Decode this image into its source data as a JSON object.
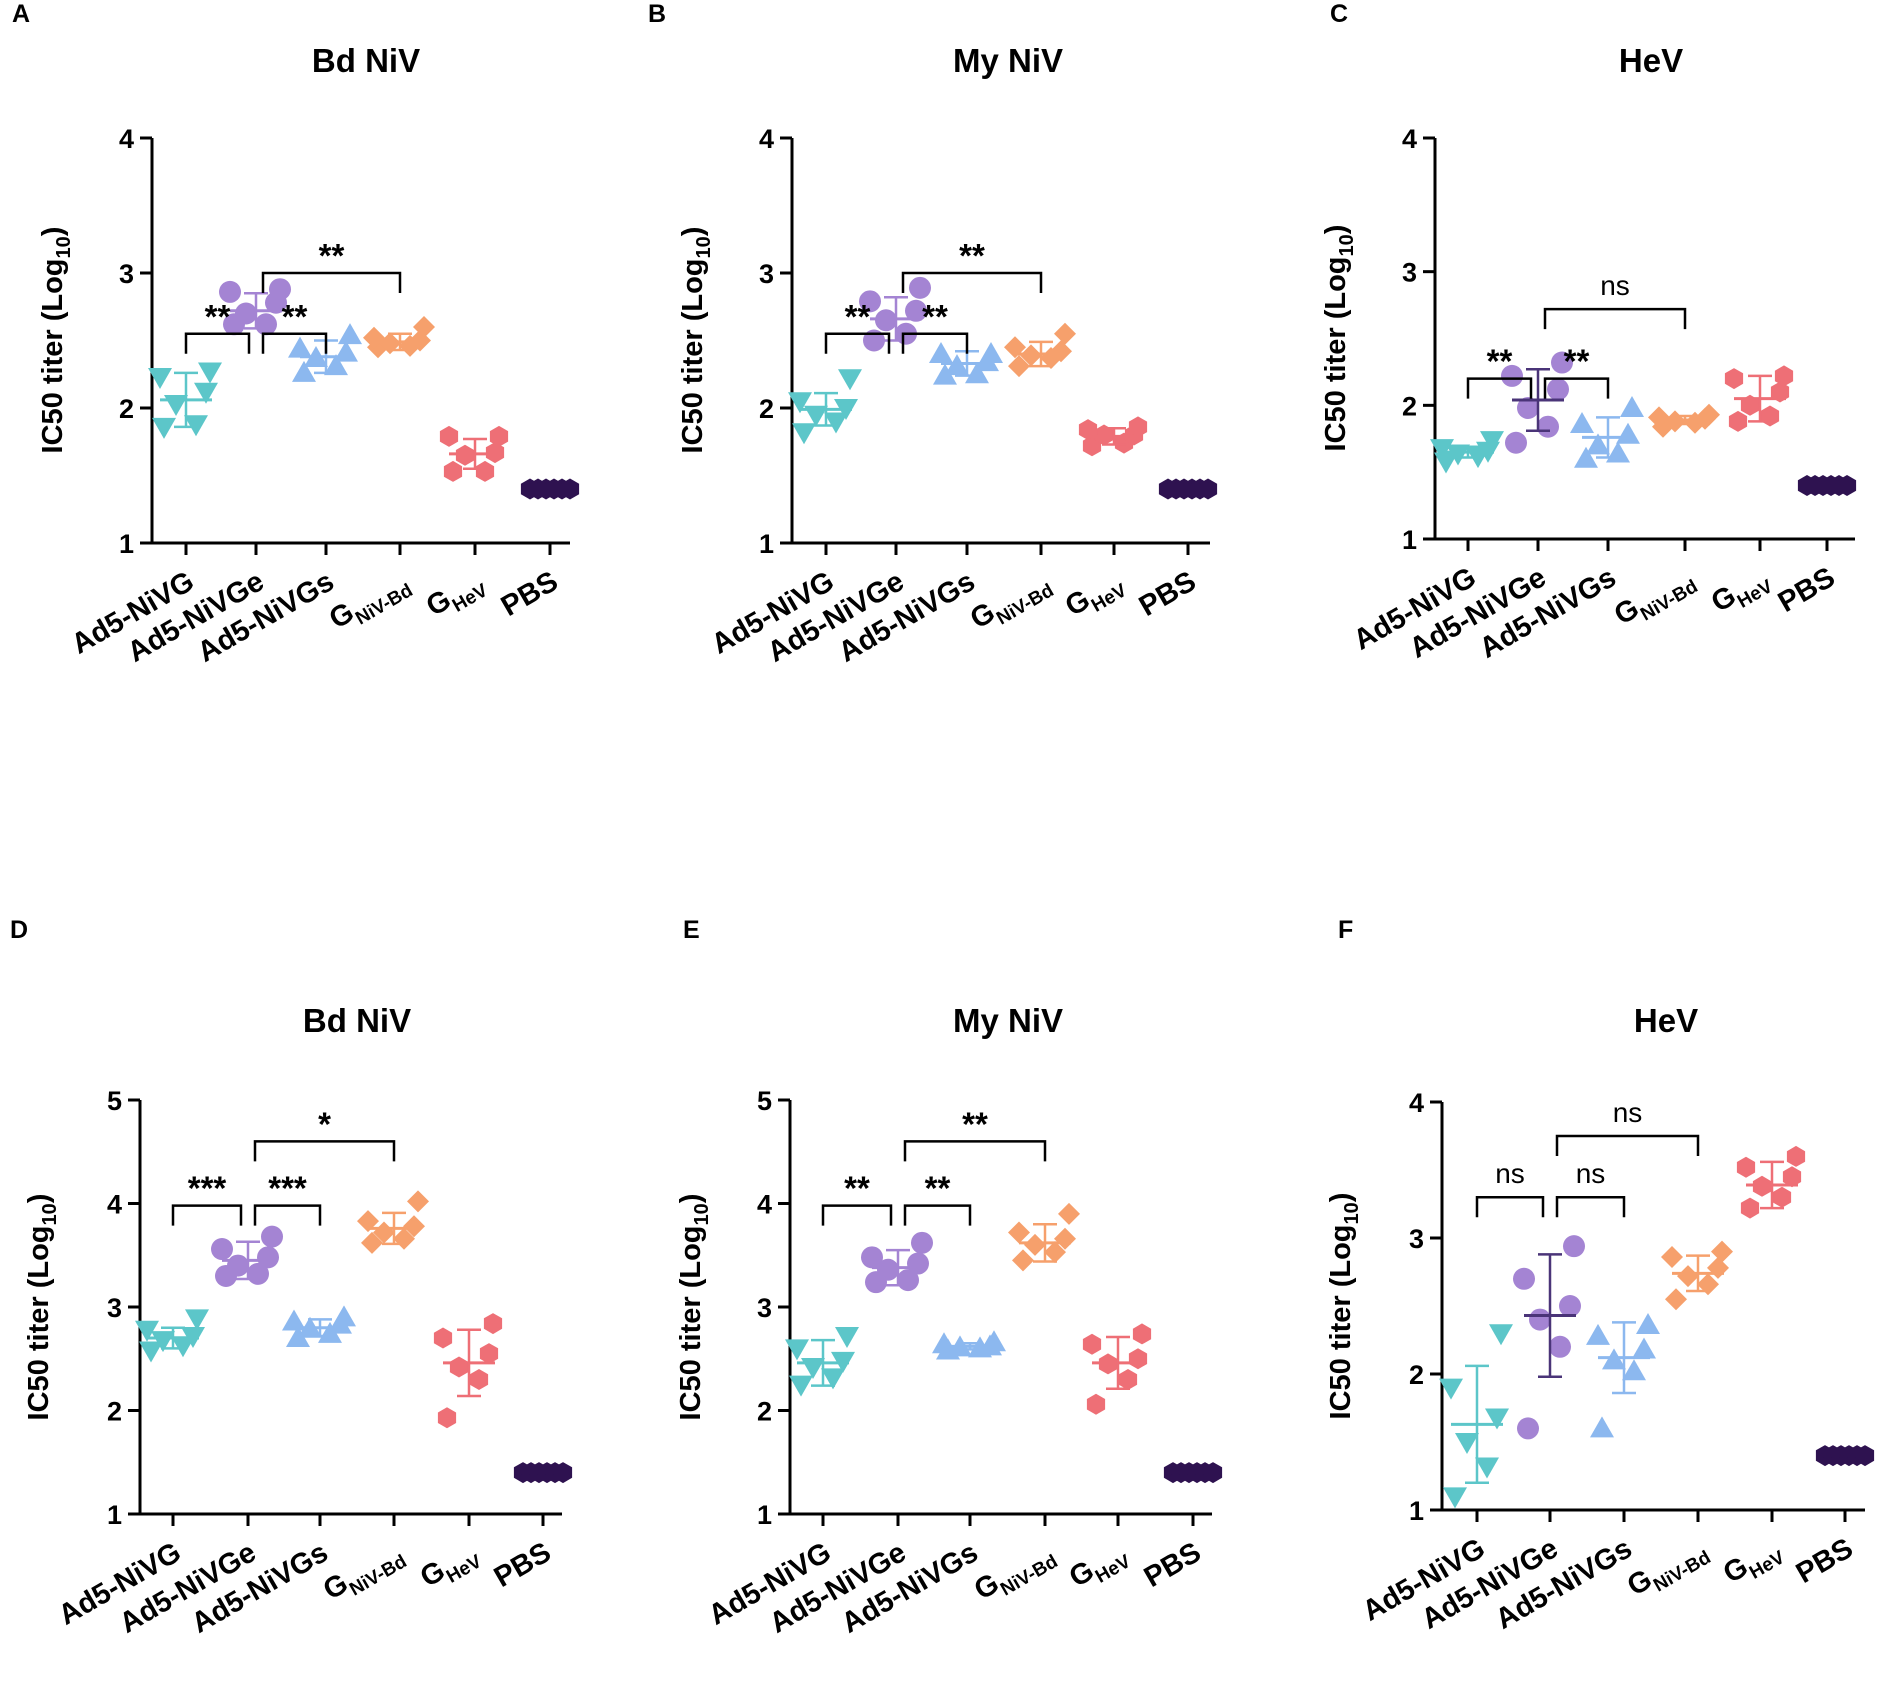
{
  "colors": {
    "Ad5-NiVG": "#5cc6c9",
    "Ad5-NiVGe": "#a484d3",
    "Ad5-NiVGs": "#8cb8ef",
    "GNiV-Bd": "#f6a06c",
    "GHeV": "#ee6f76",
    "PBS": "#2e1250"
  },
  "chart_data": [
    {
      "panel": "A",
      "title": "Bd NiV",
      "type": "scatter",
      "ylabel": "IC50 titer (Log",
      "ylabel_sub": "10",
      "ylabel_end": ")",
      "ylim": [
        1,
        4
      ],
      "yticks": [
        "1",
        "2",
        "3",
        "4"
      ],
      "categories": [
        {
          "main": "Ad5-NiVG",
          "sub": ""
        },
        {
          "main": "Ad5-NiVGe",
          "sub": ""
        },
        {
          "main": "Ad5-NiVGs",
          "sub": ""
        },
        {
          "main": "G",
          "sub": "NiV-Bd"
        },
        {
          "main": "G",
          "sub": "HeV"
        },
        {
          "main": "PBS",
          "sub": ""
        }
      ],
      "series": [
        {
          "name": "Ad5-NiVG",
          "marker": "triangle-down",
          "mean": 2.06,
          "sd": 0.2,
          "values": [
            1.86,
            1.88,
            2.03,
            2.12,
            2.23,
            2.27
          ]
        },
        {
          "name": "Ad5-NiVGe",
          "marker": "circle",
          "mean": 2.72,
          "sd": 0.13,
          "values": [
            2.62,
            2.62,
            2.7,
            2.78,
            2.86,
            2.88
          ]
        },
        {
          "name": "Ad5-NiVGs",
          "marker": "triangle-up",
          "mean": 2.38,
          "sd": 0.12,
          "values": [
            2.26,
            2.31,
            2.37,
            2.41,
            2.44,
            2.54
          ]
        },
        {
          "name": "GNiV-Bd",
          "marker": "diamond",
          "mean": 2.49,
          "sd": 0.06,
          "values": [
            2.45,
            2.46,
            2.48,
            2.5,
            2.52,
            2.6
          ]
        },
        {
          "name": "GHeV",
          "marker": "hexagon",
          "mean": 1.66,
          "sd": 0.11,
          "values": [
            1.53,
            1.53,
            1.65,
            1.67,
            1.79,
            1.79
          ]
        },
        {
          "name": "PBS",
          "marker": "hexagon",
          "mean": 1.4,
          "sd": 0,
          "values": [
            1.4,
            1.4,
            1.4,
            1.4,
            1.4,
            1.4
          ]
        }
      ],
      "comparisons": [
        {
          "from": 0,
          "to": 1,
          "label": "**",
          "y": 2.55
        },
        {
          "from": 1,
          "to": 2,
          "label": "**",
          "y": 2.55
        },
        {
          "from": 1,
          "to": 3,
          "label": "**",
          "y": 3.0
        }
      ]
    },
    {
      "panel": "B",
      "title": "My NiV",
      "type": "scatter",
      "ylabel": "IC50 titer (Log",
      "ylabel_sub": "10",
      "ylabel_end": ")",
      "ylim": [
        1,
        4
      ],
      "yticks": [
        "1",
        "2",
        "3",
        "4"
      ],
      "categories": [
        {
          "main": "Ad5-NiVG",
          "sub": ""
        },
        {
          "main": "Ad5-NiVGe",
          "sub": ""
        },
        {
          "main": "Ad5-NiVGs",
          "sub": ""
        },
        {
          "main": "G",
          "sub": "NiV-Bd"
        },
        {
          "main": "G",
          "sub": "HeV"
        },
        {
          "main": "PBS",
          "sub": ""
        }
      ],
      "series": [
        {
          "name": "Ad5-NiVG",
          "marker": "triangle-down",
          "mean": 1.99,
          "sd": 0.12,
          "values": [
            1.82,
            1.9,
            1.95,
            2.0,
            2.05,
            2.22
          ]
        },
        {
          "name": "Ad5-NiVGe",
          "marker": "circle",
          "mean": 2.66,
          "sd": 0.16,
          "values": [
            2.5,
            2.55,
            2.65,
            2.72,
            2.79,
            2.89
          ]
        },
        {
          "name": "Ad5-NiVGs",
          "marker": "triangle-up",
          "mean": 2.33,
          "sd": 0.09,
          "values": [
            2.24,
            2.25,
            2.31,
            2.34,
            2.4,
            2.4
          ]
        },
        {
          "name": "GNiV-Bd",
          "marker": "diamond",
          "mean": 2.4,
          "sd": 0.09,
          "values": [
            2.31,
            2.37,
            2.39,
            2.42,
            2.45,
            2.55
          ]
        },
        {
          "name": "GHeV",
          "marker": "hexagon",
          "mean": 1.79,
          "sd": 0.06,
          "values": [
            1.72,
            1.74,
            1.8,
            1.8,
            1.84,
            1.86
          ]
        },
        {
          "name": "PBS",
          "marker": "hexagon",
          "mean": 1.4,
          "sd": 0,
          "values": [
            1.4,
            1.4,
            1.4,
            1.4,
            1.4,
            1.4
          ]
        }
      ],
      "comparisons": [
        {
          "from": 0,
          "to": 1,
          "label": "**",
          "y": 2.55
        },
        {
          "from": 1,
          "to": 2,
          "label": "**",
          "y": 2.55
        },
        {
          "from": 1,
          "to": 3,
          "label": "**",
          "y": 3.0
        }
      ]
    },
    {
      "panel": "C",
      "title": "HeV",
      "type": "scatter",
      "ylabel": "IC50 titer (Log",
      "ylabel_sub": "10",
      "ylabel_end": ")",
      "ylim": [
        1,
        4
      ],
      "yticks": [
        "1",
        "2",
        "3",
        "4"
      ],
      "categories": [
        {
          "main": "Ad5-NiVG",
          "sub": ""
        },
        {
          "main": "Ad5-NiVGe",
          "sub": ""
        },
        {
          "main": "Ad5-NiVGs",
          "sub": ""
        },
        {
          "main": "G",
          "sub": "NiV-Bd"
        },
        {
          "main": "G",
          "sub": "HeV"
        },
        {
          "main": "PBS",
          "sub": ""
        }
      ],
      "series": [
        {
          "name": "Ad5-NiVG",
          "marker": "triangle-down",
          "mean": 1.65,
          "sd": 0.04,
          "values": [
            1.58,
            1.62,
            1.64,
            1.66,
            1.68,
            1.74
          ]
        },
        {
          "name": "Ad5-NiVGe",
          "marker": "circle",
          "mean": 2.04,
          "sd": 0.23,
          "values": [
            1.72,
            1.84,
            1.98,
            2.12,
            2.22,
            2.32
          ]
        },
        {
          "name": "Ad5-NiVGs",
          "marker": "triangle-up",
          "mean": 1.76,
          "sd": 0.15,
          "values": [
            1.6,
            1.64,
            1.7,
            1.78,
            1.86,
            1.98
          ]
        },
        {
          "name": "GNiV-Bd",
          "marker": "diamond",
          "mean": 1.89,
          "sd": 0.03,
          "values": [
            1.84,
            1.87,
            1.88,
            1.9,
            1.91,
            1.93
          ]
        },
        {
          "name": "GHeV",
          "marker": "hexagon",
          "mean": 2.05,
          "sd": 0.17,
          "values": [
            1.88,
            1.92,
            2.0,
            2.1,
            2.2,
            2.22
          ]
        },
        {
          "name": "PBS",
          "marker": "hexagon",
          "mean": 1.4,
          "sd": 0,
          "values": [
            1.4,
            1.4,
            1.4,
            1.4,
            1.4,
            1.4
          ]
        }
      ],
      "comparisons": [
        {
          "from": 0,
          "to": 1,
          "label": "**",
          "y": 2.2
        },
        {
          "from": 1,
          "to": 2,
          "label": "**",
          "y": 2.2
        },
        {
          "from": 1,
          "to": 3,
          "label": "ns",
          "y": 2.72
        }
      ]
    },
    {
      "panel": "D",
      "title": "Bd NiV",
      "type": "scatter",
      "ylabel": "IC50 titer (Log",
      "ylabel_sub": "10",
      "ylabel_end": ")",
      "ylim": [
        1,
        5
      ],
      "yticks": [
        "1",
        "2",
        "3",
        "4",
        "5"
      ],
      "categories": [
        {
          "main": "Ad5-NiVG",
          "sub": ""
        },
        {
          "main": "Ad5-NiVGe",
          "sub": ""
        },
        {
          "main": "Ad5-NiVGs",
          "sub": ""
        },
        {
          "main": "G",
          "sub": "NiV-Bd"
        },
        {
          "main": "G",
          "sub": "HeV"
        },
        {
          "main": "PBS",
          "sub": ""
        }
      ],
      "series": [
        {
          "name": "Ad5-NiVG",
          "marker": "triangle-down",
          "mean": 2.7,
          "sd": 0.1,
          "values": [
            2.58,
            2.63,
            2.68,
            2.72,
            2.78,
            2.89
          ]
        },
        {
          "name": "Ad5-NiVGe",
          "marker": "circle",
          "mean": 3.45,
          "sd": 0.18,
          "values": [
            3.3,
            3.32,
            3.4,
            3.48,
            3.56,
            3.68
          ]
        },
        {
          "name": "Ad5-NiVGs",
          "marker": "triangle-up",
          "mean": 2.8,
          "sd": 0.08,
          "values": [
            2.7,
            2.74,
            2.79,
            2.83,
            2.86,
            2.9
          ]
        },
        {
          "name": "GNiV-Bd",
          "marker": "diamond",
          "mean": 3.76,
          "sd": 0.15,
          "values": [
            3.62,
            3.66,
            3.72,
            3.78,
            3.83,
            4.02
          ]
        },
        {
          "name": "GHeV",
          "marker": "hexagon",
          "mean": 2.46,
          "sd": 0.32,
          "values": [
            1.93,
            2.3,
            2.42,
            2.55,
            2.7,
            2.84
          ]
        },
        {
          "name": "PBS",
          "marker": "hexagon",
          "mean": 1.4,
          "sd": 0,
          "values": [
            1.4,
            1.4,
            1.4,
            1.4,
            1.4,
            1.4
          ]
        }
      ],
      "comparisons": [
        {
          "from": 0,
          "to": 1,
          "label": "***",
          "y": 3.98
        },
        {
          "from": 1,
          "to": 2,
          "label": "***",
          "y": 3.98
        },
        {
          "from": 1,
          "to": 3,
          "label": "*",
          "y": 4.6
        }
      ]
    },
    {
      "panel": "E",
      "title": "My NiV",
      "type": "scatter",
      "ylabel": "IC50 titer (Log",
      "ylabel_sub": "10",
      "ylabel_end": ")",
      "ylim": [
        1,
        5
      ],
      "yticks": [
        "1",
        "2",
        "3",
        "4",
        "5"
      ],
      "categories": [
        {
          "main": "Ad5-NiVG",
          "sub": ""
        },
        {
          "main": "Ad5-NiVGe",
          "sub": ""
        },
        {
          "main": "Ad5-NiVGs",
          "sub": ""
        },
        {
          "main": "G",
          "sub": "NiV-Bd"
        },
        {
          "main": "G",
          "sub": "HeV"
        },
        {
          "main": "PBS",
          "sub": ""
        }
      ],
      "series": [
        {
          "name": "Ad5-NiVG",
          "marker": "triangle-down",
          "mean": 2.46,
          "sd": 0.22,
          "values": [
            2.25,
            2.32,
            2.42,
            2.48,
            2.6,
            2.72
          ]
        },
        {
          "name": "Ad5-NiVGe",
          "marker": "circle",
          "mean": 3.38,
          "sd": 0.17,
          "values": [
            3.24,
            3.26,
            3.36,
            3.42,
            3.48,
            3.62
          ]
        },
        {
          "name": "Ad5-NiVGs",
          "marker": "triangle-up",
          "mean": 2.62,
          "sd": 0.03,
          "values": [
            2.58,
            2.6,
            2.61,
            2.62,
            2.64,
            2.66
          ]
        },
        {
          "name": "GNiV-Bd",
          "marker": "diamond",
          "mean": 3.62,
          "sd": 0.18,
          "values": [
            3.45,
            3.53,
            3.6,
            3.66,
            3.72,
            3.9
          ]
        },
        {
          "name": "GHeV",
          "marker": "hexagon",
          "mean": 2.46,
          "sd": 0.25,
          "values": [
            2.06,
            2.3,
            2.45,
            2.5,
            2.64,
            2.74
          ]
        },
        {
          "name": "PBS",
          "marker": "hexagon",
          "mean": 1.4,
          "sd": 0,
          "values": [
            1.4,
            1.4,
            1.4,
            1.4,
            1.4,
            1.4
          ]
        }
      ],
      "comparisons": [
        {
          "from": 0,
          "to": 1,
          "label": "**",
          "y": 3.98
        },
        {
          "from": 1,
          "to": 2,
          "label": "**",
          "y": 3.98
        },
        {
          "from": 1,
          "to": 3,
          "label": "**",
          "y": 4.6
        }
      ]
    },
    {
      "panel": "F",
      "title": "HeV",
      "type": "scatter",
      "ylabel": "IC50 titer (Log",
      "ylabel_sub": "10",
      "ylabel_end": ")",
      "ylim": [
        1,
        4
      ],
      "yticks": [
        "1",
        "2",
        "3",
        "4"
      ],
      "categories": [
        {
          "main": "Ad5-NiVG",
          "sub": ""
        },
        {
          "main": "Ad5-NiVGe",
          "sub": ""
        },
        {
          "main": "Ad5-NiVGs",
          "sub": ""
        },
        {
          "main": "G",
          "sub": "NiV-Bd"
        },
        {
          "main": "G",
          "sub": "HeV"
        },
        {
          "main": "PBS",
          "sub": ""
        }
      ],
      "series": [
        {
          "name": "Ad5-NiVG",
          "marker": "triangle-down",
          "mean": 1.63,
          "sd": 0.43,
          "values": [
            1.1,
            1.32,
            1.5,
            1.68,
            1.9,
            2.3
          ]
        },
        {
          "name": "Ad5-NiVGe",
          "marker": "circle",
          "mean": 2.43,
          "sd": 0.45,
          "values": [
            1.6,
            2.2,
            2.4,
            2.5,
            2.7,
            2.94
          ]
        },
        {
          "name": "Ad5-NiVGs",
          "marker": "triangle-up",
          "mean": 2.12,
          "sd": 0.26,
          "values": [
            1.6,
            2.02,
            2.1,
            2.18,
            2.28,
            2.36
          ]
        },
        {
          "name": "GNiV-Bd",
          "marker": "diamond",
          "mean": 2.74,
          "sd": 0.13,
          "values": [
            2.55,
            2.66,
            2.72,
            2.78,
            2.86,
            2.9
          ]
        },
        {
          "name": "GHeV",
          "marker": "hexagon",
          "mean": 3.39,
          "sd": 0.17,
          "values": [
            3.22,
            3.3,
            3.38,
            3.45,
            3.52,
            3.6
          ]
        },
        {
          "name": "PBS",
          "marker": "hexagon",
          "mean": 1.4,
          "sd": 0,
          "values": [
            1.4,
            1.4,
            1.4,
            1.4,
            1.4,
            1.4
          ]
        }
      ],
      "comparisons": [
        {
          "from": 0,
          "to": 1,
          "label": "ns",
          "y": 3.3
        },
        {
          "from": 1,
          "to": 2,
          "label": "ns",
          "y": 3.3
        },
        {
          "from": 1,
          "to": 3,
          "label": "ns",
          "y": 3.75
        }
      ]
    }
  ]
}
